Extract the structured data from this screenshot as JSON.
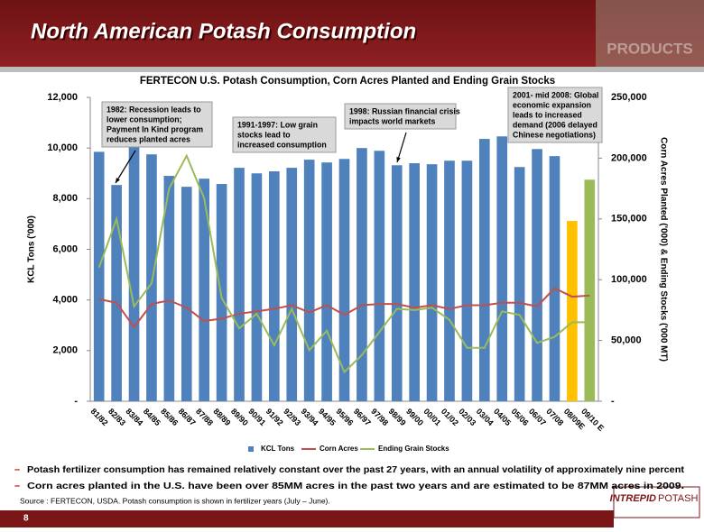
{
  "header": {
    "title": "North American Potash Consumption",
    "image_text": "PRODUCTS"
  },
  "chart_data": {
    "type": "combo",
    "title": "FERTECON U.S. Potash Consumption, Corn Acres Planted and Ending Grain Stocks",
    "y_label": "KCL Tons ('000)",
    "y2_label": "Corn Acres Planted ('000) & Ending Stocks ('000 MT)",
    "categories": [
      "81/82",
      "82/83",
      "83/84",
      "84/85",
      "85/86",
      "86/87",
      "87/88",
      "88/89",
      "89/90",
      "90/91",
      "91/92",
      "92/93",
      "93/94",
      "94/95",
      "95/96",
      "96/97",
      "97/98",
      "98/99",
      "99/00",
      "00/01",
      "01/02",
      "02/03",
      "03/04",
      "04/05",
      "05/06",
      "06/07",
      "07/08",
      "08/09E",
      "09/10 E"
    ],
    "ylim": [
      0,
      12000
    ],
    "yticks": [
      {
        "value": 0,
        "label": "-"
      },
      {
        "value": 2000,
        "label": "2,000"
      },
      {
        "value": 4000,
        "label": "4,000"
      },
      {
        "value": 6000,
        "label": "6,000"
      },
      {
        "value": 8000,
        "label": "8,000"
      },
      {
        "value": 10000,
        "label": "10,000"
      },
      {
        "value": 12000,
        "label": "12,000"
      }
    ],
    "y2lim": [
      0,
      250000
    ],
    "y2ticks": [
      {
        "value": 0,
        "label": "-"
      },
      {
        "value": 50000,
        "label": "50,000"
      },
      {
        "value": 100000,
        "label": "100,000"
      },
      {
        "value": 150000,
        "label": "150,000"
      },
      {
        "value": 200000,
        "label": "200,000"
      },
      {
        "value": 250000,
        "label": "250,000"
      }
    ],
    "series": [
      {
        "name": "KCL Tons",
        "kind": "bar",
        "axis": "y",
        "color": "#4f81bd",
        "colors": [
          "#4f81bd",
          "#4f81bd",
          "#4f81bd",
          "#4f81bd",
          "#4f81bd",
          "#4f81bd",
          "#4f81bd",
          "#4f81bd",
          "#4f81bd",
          "#4f81bd",
          "#4f81bd",
          "#4f81bd",
          "#4f81bd",
          "#4f81bd",
          "#4f81bd",
          "#4f81bd",
          "#4f81bd",
          "#4f81bd",
          "#4f81bd",
          "#4f81bd",
          "#4f81bd",
          "#4f81bd",
          "#4f81bd",
          "#4f81bd",
          "#4f81bd",
          "#4f81bd",
          "#4f81bd",
          "#ffc000",
          "#9bbb59"
        ],
        "values": [
          9850,
          8540,
          10200,
          9750,
          8900,
          8470,
          8790,
          8580,
          9220,
          9000,
          9080,
          9220,
          9540,
          9430,
          9570,
          10000,
          9890,
          9320,
          9400,
          9360,
          9500,
          9500,
          10360,
          10460,
          9250,
          9960,
          9680,
          7120,
          8750
        ]
      },
      {
        "name": "Corn Acres",
        "kind": "line",
        "axis": "y2",
        "color": "#c0504d",
        "values": [
          84000,
          81000,
          61000,
          80000,
          83000,
          77000,
          66000,
          68000,
          72000,
          74000,
          76000,
          79000,
          73000,
          79000,
          71000,
          79000,
          80000,
          80000,
          77000,
          79000,
          76000,
          79000,
          79000,
          81000,
          81000,
          78000,
          93000,
          86000,
          87000
        ]
      },
      {
        "name": "Ending Grain Stocks",
        "kind": "line",
        "axis": "y2",
        "color": "#9bbb59",
        "values": [
          110000,
          150000,
          78000,
          97000,
          175000,
          202000,
          167000,
          85000,
          60000,
          72000,
          46000,
          76000,
          42000,
          58000,
          24000,
          38000,
          57000,
          76000,
          75000,
          77000,
          67000,
          44000,
          44000,
          74000,
          71000,
          48000,
          53000,
          65000,
          65000
        ]
      }
    ],
    "annotations": [
      {
        "lines": [
          "1982: Recession leads to",
          "lower consumption;",
          "Payment In Kind program",
          "reduces planted acres"
        ]
      },
      {
        "lines": [
          "1991-1997: Low grain",
          "stocks lead to",
          "increased consumption"
        ]
      },
      {
        "lines": [
          "1998: Russian financial crisis",
          "impacts world markets"
        ]
      },
      {
        "lines": [
          "2001- mid 2008: Global",
          "economic expansion",
          "leads to increased",
          "demand (2006 delayed",
          "Chinese negotiations)"
        ]
      }
    ]
  },
  "bullets": [
    {
      "marker": "–",
      "text": "Potash fertilizer consumption has remained relatively constant over the past 27 years, with an annual volatility of approximately nine percent"
    },
    {
      "marker": "–",
      "text": "Corn acres planted in the U.S. have been over 85MM acres in the past two years and are estimated to be 87MM acres in 2009."
    }
  ],
  "source": "Source : FERTECON, USDA.  Potash consumption is shown in fertilizer years (July – June).",
  "page_number": "8",
  "logo": {
    "word1": "INTREPID",
    "word2": "POTASH"
  }
}
